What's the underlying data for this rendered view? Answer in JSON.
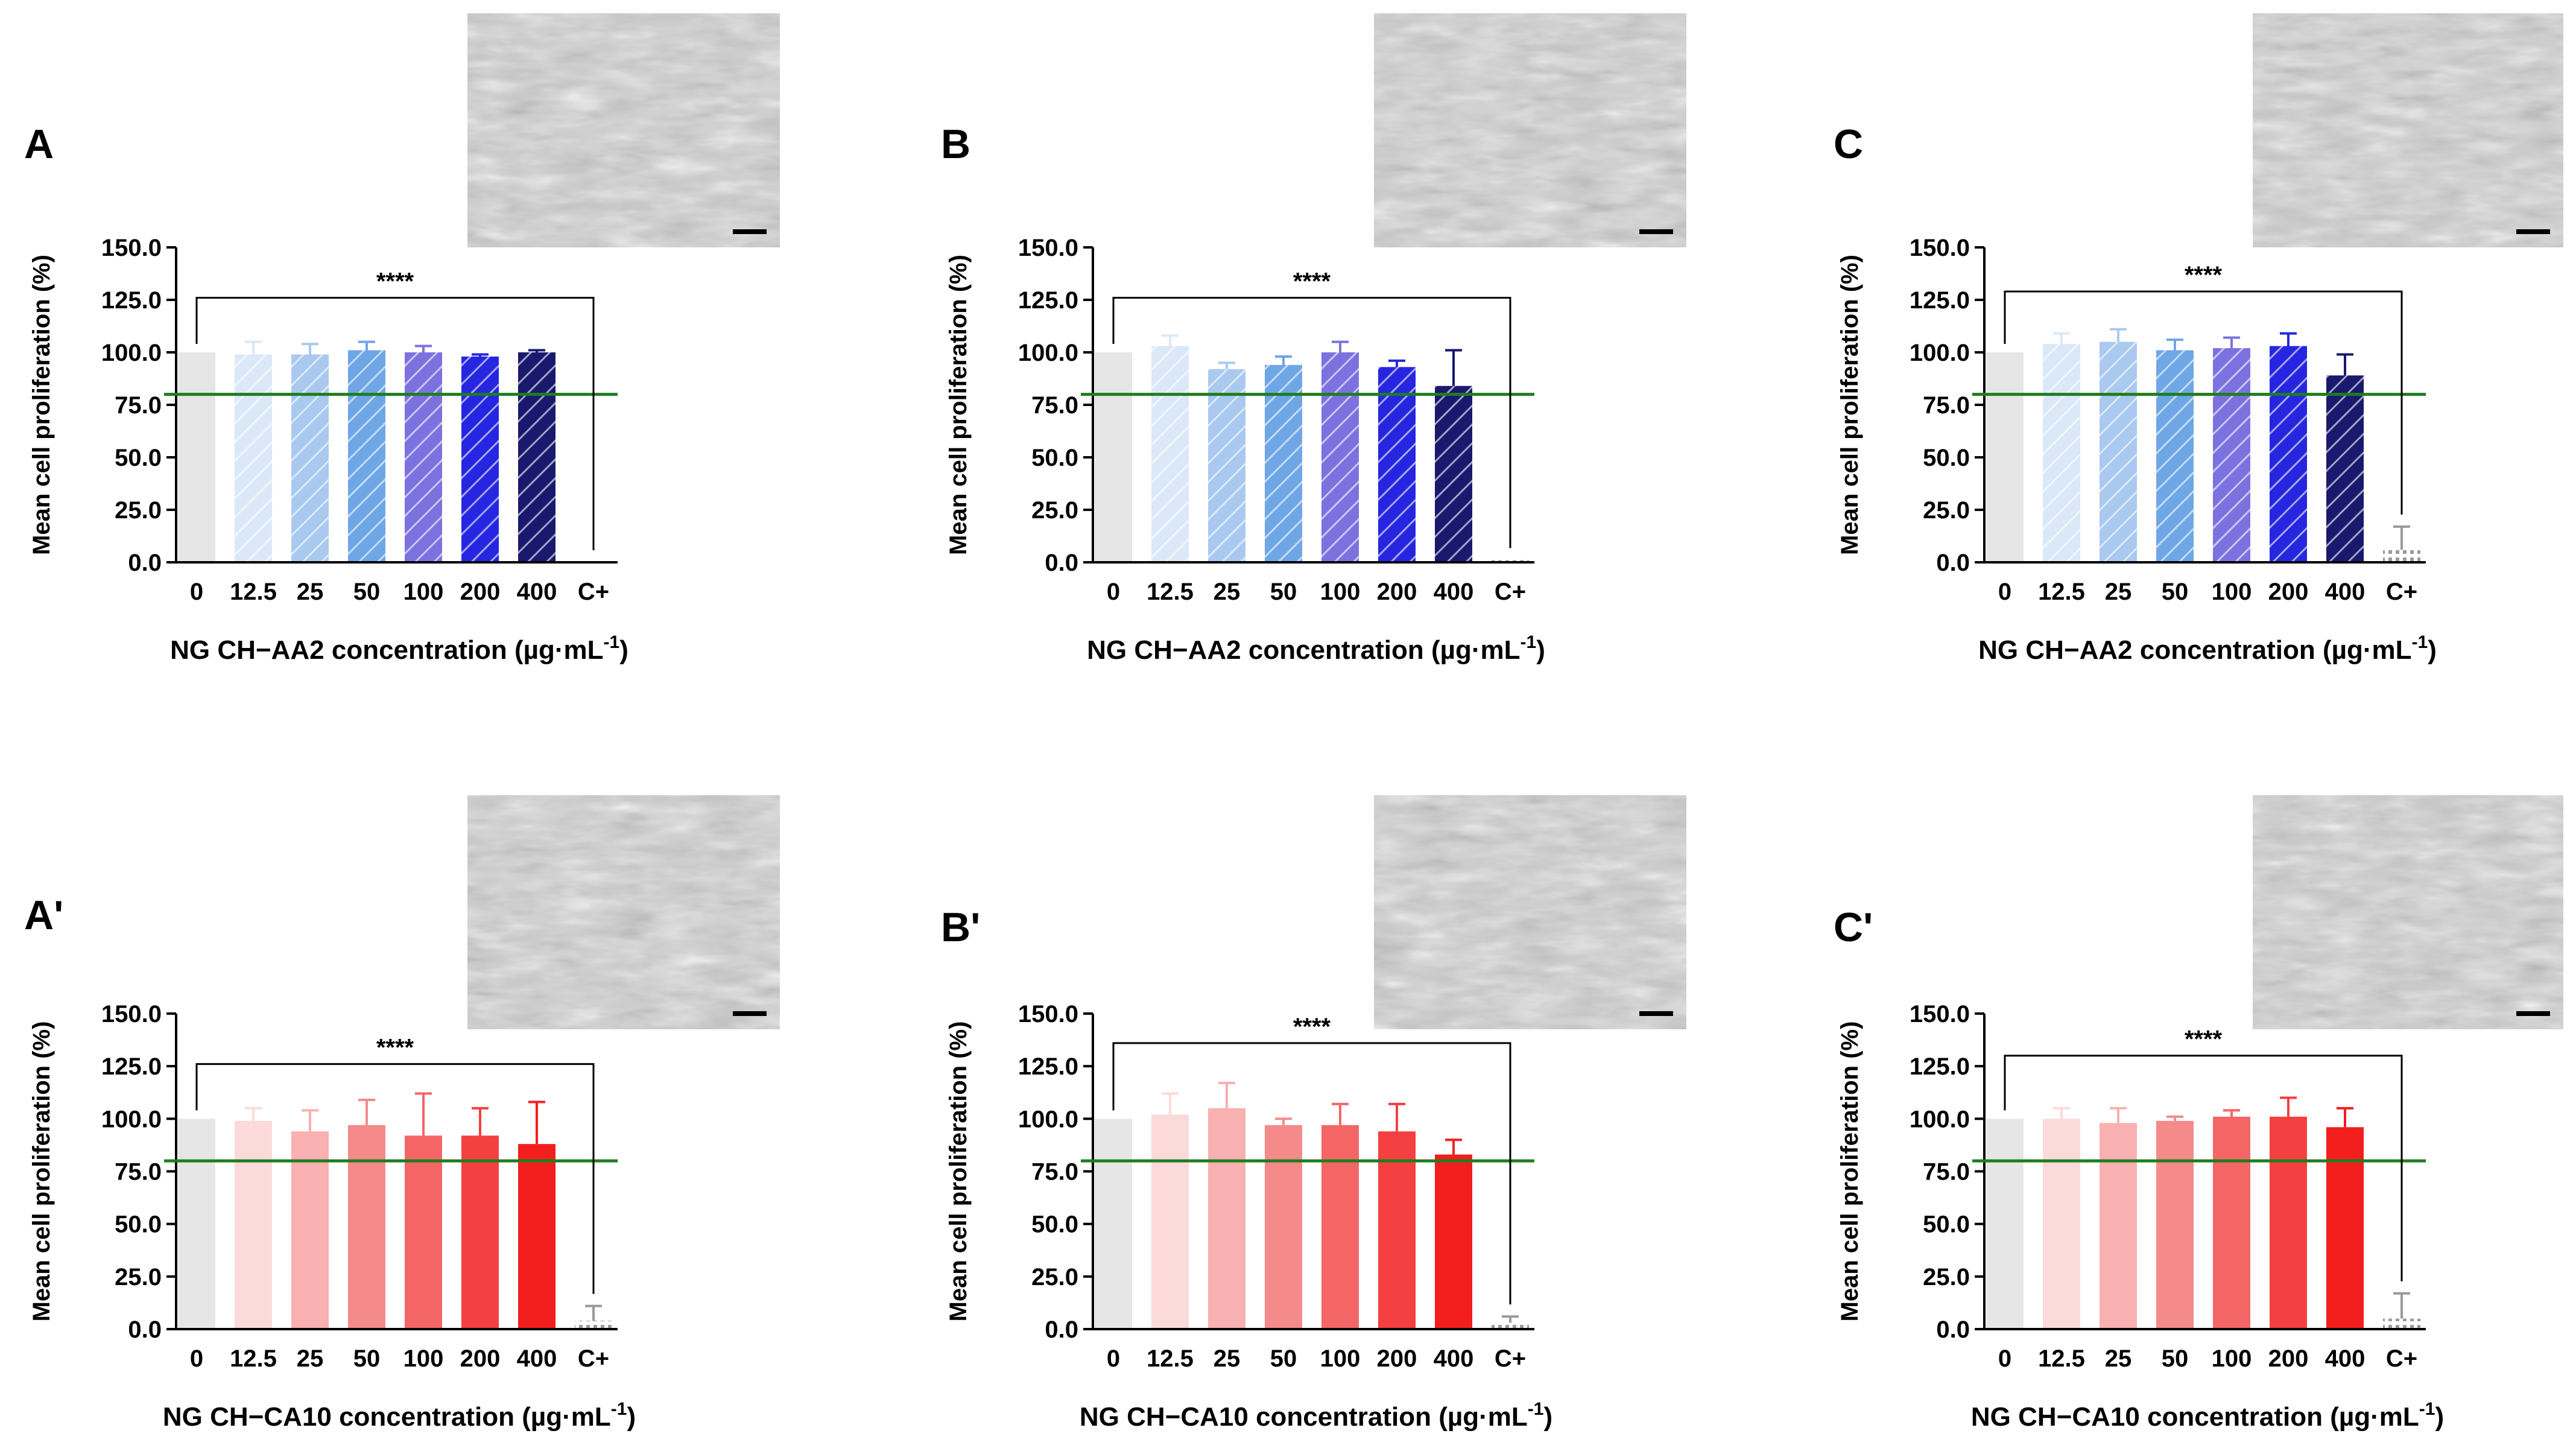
{
  "colors": {
    "control": "#e6e6e6",
    "threshold_line": "#1e7d1e",
    "axis": "#000000",
    "cplus": "#9a9a9a",
    "blue": [
      "#dbe8f7",
      "#a9c9ef",
      "#6fa6e6",
      "#7b72e0",
      "#2626e0",
      "#19196e"
    ],
    "red": [
      "#fcdada",
      "#f8b0b0",
      "#f58a8a",
      "#f46666",
      "#f44040",
      "#f21e1e"
    ]
  },
  "chart_data": [
    {
      "panel": "A",
      "type": "bar",
      "palette": "blue",
      "hatched": true,
      "categories": [
        "0",
        "12.5",
        "25",
        "50",
        "100",
        "200",
        "400",
        "C+"
      ],
      "values": [
        100,
        99,
        99,
        101,
        100,
        98,
        100,
        0
      ],
      "errors": [
        0,
        6,
        5,
        4,
        3,
        1,
        1,
        0
      ],
      "ylim": [
        0,
        150
      ],
      "yticks": [
        "0.0",
        "25.0",
        "50.0",
        "75.0",
        "100.0",
        "125.0",
        "150.0"
      ],
      "ylabel": "Mean cell proliferation (%)",
      "xlabel_main": "NG CH−AA2 concentration (µg·mL",
      "xlabel_sup": "-1",
      "xlabel_end": ")",
      "threshold": 80,
      "significance": "****",
      "bracket_y": 126
    },
    {
      "panel": "B",
      "type": "bar",
      "palette": "blue",
      "hatched": true,
      "categories": [
        "0",
        "12.5",
        "25",
        "50",
        "100",
        "200",
        "400",
        "C+"
      ],
      "values": [
        100,
        103,
        92,
        94,
        100,
        93,
        84,
        1
      ],
      "errors": [
        0,
        5,
        3,
        4,
        5,
        3,
        17,
        0
      ],
      "ylim": [
        0,
        150
      ],
      "yticks": [
        "0.0",
        "25.0",
        "50.0",
        "75.0",
        "100.0",
        "125.0",
        "150.0"
      ],
      "ylabel": "Mean cell proliferation (%)",
      "xlabel_main": "NG CH−AA2 concentration (µg·mL",
      "xlabel_sup": "-1",
      "xlabel_end": ")",
      "threshold": 80,
      "significance": "****",
      "bracket_y": 126
    },
    {
      "panel": "C",
      "type": "bar",
      "palette": "blue",
      "hatched": true,
      "categories": [
        "0",
        "12.5",
        "25",
        "50",
        "100",
        "200",
        "400",
        "C+"
      ],
      "values": [
        100,
        104,
        105,
        101,
        102,
        103,
        89,
        6
      ],
      "errors": [
        0,
        5,
        6,
        5,
        5,
        6,
        10,
        11
      ],
      "ylim": [
        0,
        150
      ],
      "yticks": [
        "0.0",
        "25.0",
        "50.0",
        "75.0",
        "100.0",
        "125.0",
        "150.0"
      ],
      "ylabel": "Mean cell proliferation (%)",
      "xlabel_main": "NG CH−AA2 concentration (µg·mL",
      "xlabel_sup": "-1",
      "xlabel_end": ")",
      "threshold": 80,
      "significance": "****",
      "bracket_y": 129
    },
    {
      "panel": "A'",
      "type": "bar",
      "palette": "red",
      "hatched": false,
      "categories": [
        "0",
        "12.5",
        "25",
        "50",
        "100",
        "200",
        "400",
        "C+"
      ],
      "values": [
        100,
        99,
        94,
        97,
        92,
        92,
        88,
        4
      ],
      "errors": [
        0,
        6,
        10,
        12,
        20,
        13,
        20,
        7
      ],
      "ylim": [
        0,
        150
      ],
      "yticks": [
        "0.0",
        "25.0",
        "50.0",
        "75.0",
        "100.0",
        "125.0",
        "150.0"
      ],
      "ylabel": "Mean cell proliferation (%)",
      "xlabel_main": "NG CH−CA10 concentration (µg·mL",
      "xlabel_sup": "-1",
      "xlabel_end": ")",
      "threshold": 80,
      "significance": "****",
      "bracket_y": 126
    },
    {
      "panel": "B'",
      "type": "bar",
      "palette": "red",
      "hatched": false,
      "categories": [
        "0",
        "12.5",
        "25",
        "50",
        "100",
        "200",
        "400",
        "C+"
      ],
      "values": [
        100,
        102,
        105,
        97,
        97,
        94,
        83,
        3
      ],
      "errors": [
        0,
        10,
        12,
        3,
        10,
        13,
        7,
        3
      ],
      "ylim": [
        0,
        150
      ],
      "yticks": [
        "0.0",
        "25.0",
        "50.0",
        "75.0",
        "100.0",
        "125.0",
        "150.0"
      ],
      "ylabel": "Mean cell proliferation (%)",
      "xlabel_main": "NG CH−CA10 concentration (µg·mL",
      "xlabel_sup": "-1",
      "xlabel_end": ")",
      "threshold": 80,
      "significance": "****",
      "bracket_y": 136
    },
    {
      "panel": "C'",
      "type": "bar",
      "palette": "red",
      "hatched": false,
      "categories": [
        "0",
        "12.5",
        "25",
        "50",
        "100",
        "200",
        "400",
        "C+"
      ],
      "values": [
        100,
        100,
        98,
        99,
        101,
        101,
        96,
        5
      ],
      "errors": [
        0,
        5,
        7,
        2,
        3,
        9,
        9,
        12
      ],
      "ylim": [
        0,
        150
      ],
      "yticks": [
        "0.0",
        "25.0",
        "50.0",
        "75.0",
        "100.0",
        "125.0",
        "150.0"
      ],
      "ylabel": "Mean cell proliferation (%)",
      "xlabel_main": "NG CH−CA10 concentration (µg·mL",
      "xlabel_sup": "-1",
      "xlabel_end": ")",
      "threshold": 80,
      "significance": "****",
      "bracket_y": 130
    }
  ]
}
